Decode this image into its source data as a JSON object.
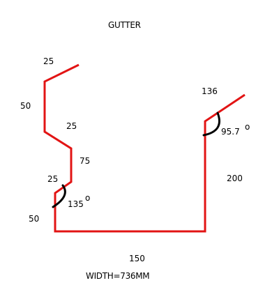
{
  "title": "GUTTER",
  "width_label": "WIDTH=736MM",
  "colors": {
    "profile": "#e21414",
    "angle_arc": "#000000",
    "text": "#000000",
    "background": "#ffffff"
  },
  "dimensions": {
    "top_lip": "25",
    "back_upper": "50",
    "back_slope": "25",
    "back_mid": "75",
    "back_kick": "25",
    "back_lower": "50",
    "base": "150",
    "front": "200",
    "front_lip": "136"
  },
  "angles": {
    "back": {
      "value": "135",
      "unit": "o"
    },
    "front": {
      "value": "95.7",
      "unit": "o"
    }
  }
}
